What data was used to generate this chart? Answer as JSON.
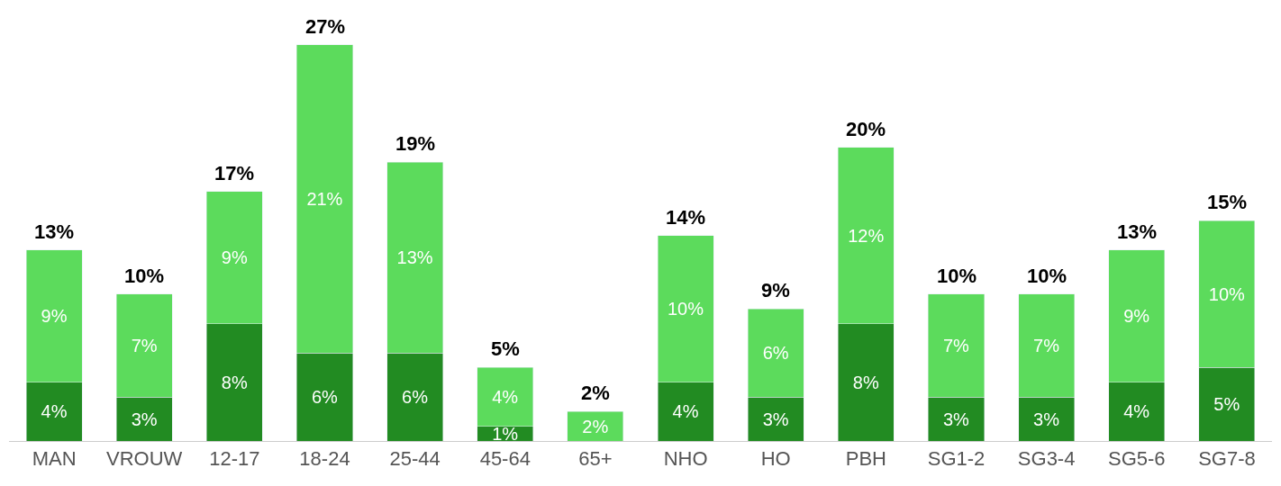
{
  "chart_data": {
    "type": "bar",
    "stacked": true,
    "categories": [
      "MAN",
      "VROUW",
      "12-17",
      "18-24",
      "25-44",
      "45-64",
      "65+",
      "NHO",
      "HO",
      "PBH",
      "SG1-2",
      "SG3-4",
      "SG5-6",
      "SG7-8"
    ],
    "series": [
      {
        "color": "#228b22",
        "values": [
          4,
          3,
          8,
          6,
          6,
          1,
          null,
          4,
          3,
          8,
          3,
          3,
          4,
          5
        ],
        "value_labels": [
          "4%",
          "3%",
          "8%",
          "6%",
          "6%",
          "1%",
          null,
          "4%",
          "3%",
          "8%",
          "3%",
          "3%",
          "4%",
          "5%"
        ]
      },
      {
        "color": "#5cdb5c",
        "values": [
          9,
          7,
          9,
          21,
          13,
          4,
          2,
          10,
          6,
          12,
          7,
          7,
          9,
          10
        ],
        "value_labels": [
          "9%",
          "7%",
          "9%",
          "21%",
          "13%",
          "4%",
          "2%",
          "10%",
          "6%",
          "12%",
          "7%",
          "7%",
          "9%",
          "10%"
        ]
      }
    ],
    "totals": [
      "13%",
      "10%",
      "17%",
      "27%",
      "19%",
      "5%",
      "2%",
      "14%",
      "9%",
      "20%",
      "10%",
      "10%",
      "13%",
      "15%"
    ],
    "legend": false,
    "tick_labels": "x"
  }
}
